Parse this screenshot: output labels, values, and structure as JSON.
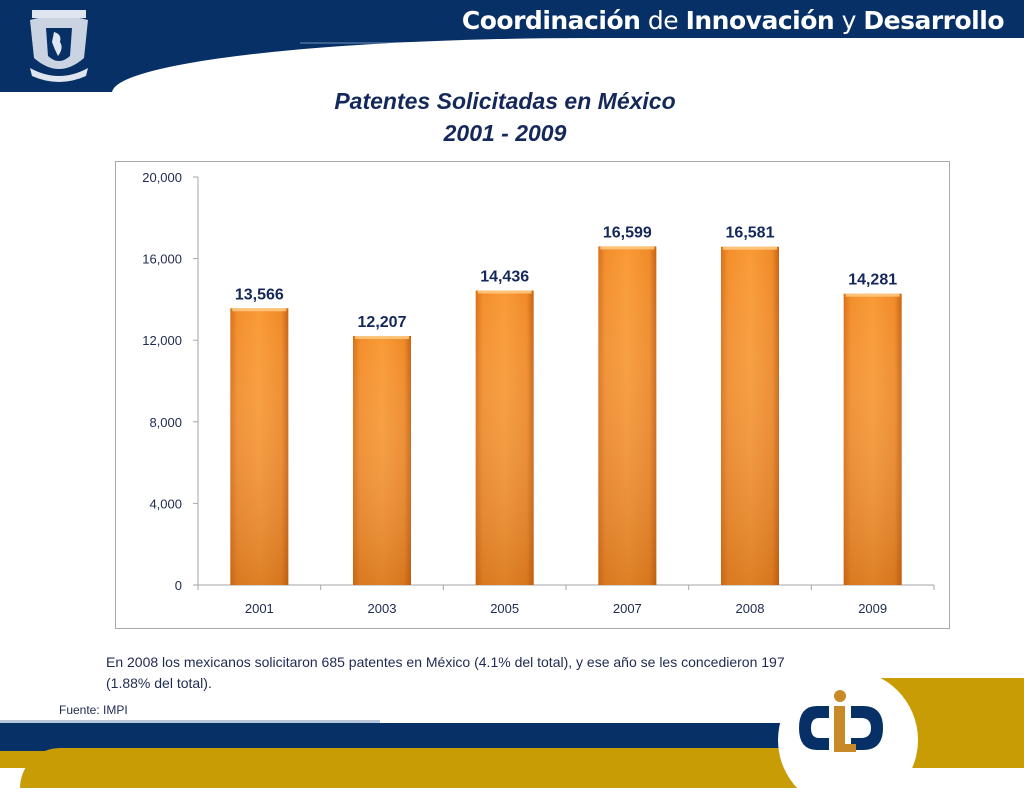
{
  "header": {
    "brand_part1": "Coordinación",
    "brand_part2": "de",
    "brand_part3": "Innovación",
    "brand_part4": "y",
    "brand_part5": "Desarrollo",
    "colors": {
      "navy": "#073066",
      "gold": "#c89c05"
    }
  },
  "title": {
    "line1": "Patentes Solicitadas en México",
    "line2": "2001 - 2009"
  },
  "chart_data": {
    "type": "bar",
    "title": "Patentes Solicitadas en México 2001 - 2009",
    "xlabel": "",
    "ylabel": "",
    "categories": [
      "2001",
      "2003",
      "2005",
      "2007",
      "2008",
      "2009"
    ],
    "values": [
      13566,
      12207,
      14436,
      16599,
      16581,
      14281
    ],
    "value_labels": [
      "13,566",
      "12,207",
      "14,436",
      "16,599",
      "16,581",
      "14,281"
    ],
    "ylim": [
      0,
      20000
    ],
    "yticks": [
      0,
      4000,
      8000,
      12000,
      16000,
      20000
    ],
    "ytick_labels": [
      "0",
      "4,000",
      "8,000",
      "12,000",
      "16,000",
      "20,000"
    ],
    "grid": false,
    "legend": "none",
    "bar_color": "#f7922a"
  },
  "note": "En 2008 los mexicanos solicitaron 685 patentes en México (4.1% del total), y ese año se les concedieron 197 (1.88% del total).",
  "source": "Fuente: IMPI"
}
